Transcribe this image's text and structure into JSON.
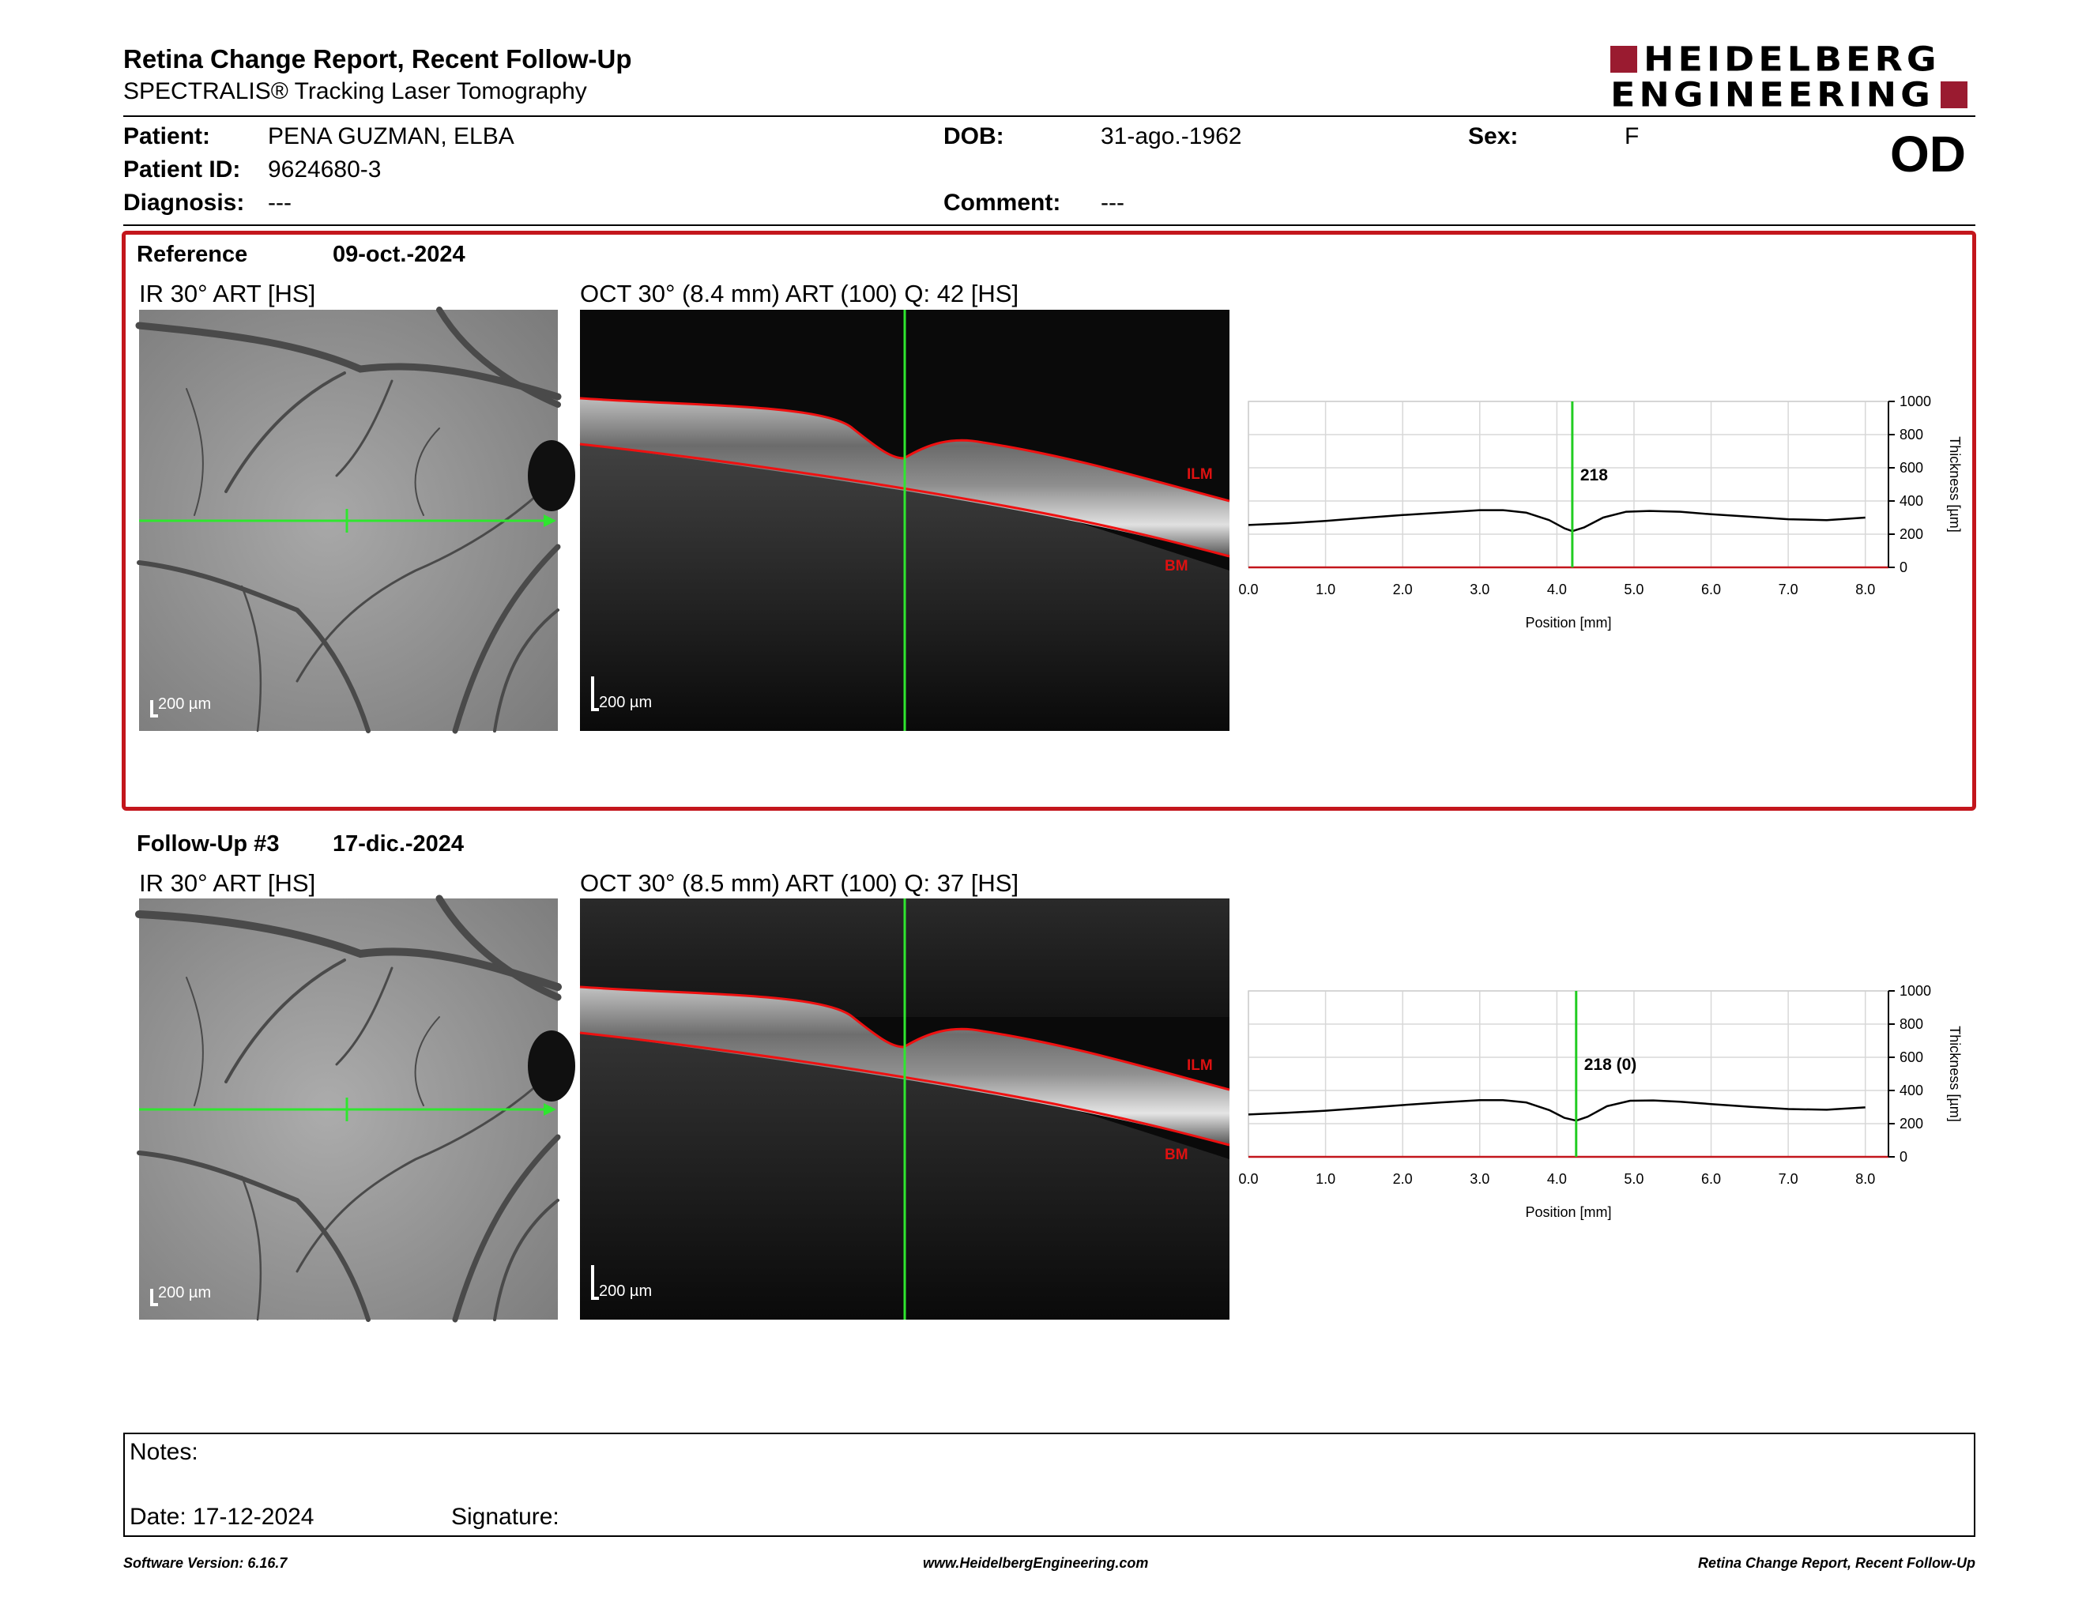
{
  "header": {
    "title": "Retina Change Report, Recent Follow-Up",
    "subtitle": "SPECTRALIS® Tracking Laser Tomography",
    "logo_line1": "HEIDELBERG",
    "logo_line2": "ENGINEERING",
    "brand_color": "#9a1b30"
  },
  "patient": {
    "patient_label": "Patient:",
    "patient_value": "PENA GUZMAN, ELBA",
    "id_label": "Patient ID:",
    "id_value": "9624680-3",
    "diagnosis_label": "Diagnosis:",
    "diagnosis_value": "---",
    "dob_label": "DOB:",
    "dob_value": "31-ago.-1962",
    "comment_label": "Comment:",
    "comment_value": "---",
    "sex_label": "Sex:",
    "sex_value": "F",
    "eye": "OD"
  },
  "reference": {
    "label": "Reference",
    "date": "09-oct.-2024",
    "ir_title": "IR 30° ART [HS]",
    "oct_title": "OCT 30° (8.4 mm) ART (100) Q: 42 [HS]",
    "ir_scale": "200 µm",
    "oct_scale": "200 µm",
    "ilm_label": "ILM",
    "bm_label": "BM",
    "highlight_color": "#c3161c"
  },
  "followup": {
    "label": "Follow-Up #3",
    "date": "17-dic.-2024",
    "ir_title": "IR 30° ART [HS]",
    "oct_title": "OCT 30° (8.5 mm) ART (100) Q: 37 [HS]",
    "ir_scale": "200 µm",
    "oct_scale": "200 µm",
    "ilm_label": "ILM",
    "bm_label": "BM"
  },
  "chart_data": [
    {
      "type": "line",
      "xlabel": "Position [mm]",
      "ylabel": "Thickness [µm]",
      "xlim": [
        0,
        8.3
      ],
      "ylim": [
        0,
        1000
      ],
      "x_ticks": [
        "0.0",
        "1.0",
        "2.0",
        "3.0",
        "4.0",
        "5.0",
        "6.0",
        "7.0",
        "8.0"
      ],
      "y_ticks": [
        "0",
        "200",
        "400",
        "600",
        "800",
        "1000"
      ],
      "cursor_x": 4.2,
      "cursor_label": "218",
      "cursor_color": "#22cc22",
      "grid": true,
      "x": [
        0.0,
        0.5,
        1.0,
        1.5,
        2.0,
        2.5,
        3.0,
        3.3,
        3.6,
        3.9,
        4.1,
        4.2,
        4.35,
        4.6,
        4.9,
        5.2,
        5.6,
        6.0,
        6.5,
        7.0,
        7.5,
        8.0
      ],
      "y": [
        255,
        265,
        280,
        298,
        315,
        330,
        345,
        345,
        330,
        285,
        235,
        218,
        240,
        300,
        335,
        340,
        335,
        320,
        305,
        290,
        285,
        300
      ]
    },
    {
      "type": "line",
      "xlabel": "Position [mm]",
      "ylabel": "Thickness [µm]",
      "xlim": [
        0,
        8.3
      ],
      "ylim": [
        0,
        1000
      ],
      "x_ticks": [
        "0.0",
        "1.0",
        "2.0",
        "3.0",
        "4.0",
        "5.0",
        "6.0",
        "7.0",
        "8.0"
      ],
      "y_ticks": [
        "0",
        "200",
        "400",
        "600",
        "800",
        "1000"
      ],
      "cursor_x": 4.25,
      "cursor_label": "218 (0)",
      "cursor_color": "#22cc22",
      "grid": true,
      "x": [
        0.0,
        0.5,
        1.0,
        1.5,
        2.0,
        2.5,
        3.0,
        3.3,
        3.6,
        3.9,
        4.1,
        4.25,
        4.4,
        4.65,
        4.95,
        5.25,
        5.6,
        6.0,
        6.5,
        7.0,
        7.5,
        8.0
      ],
      "y": [
        255,
        265,
        278,
        295,
        312,
        328,
        342,
        342,
        328,
        282,
        235,
        218,
        242,
        305,
        338,
        340,
        332,
        318,
        302,
        288,
        284,
        298
      ]
    }
  ],
  "notes": {
    "notes_label": "Notes:",
    "date_label": "Date: 17-12-2024",
    "signature_label": "Signature:"
  },
  "footer": {
    "software": "Software Version: 6.16.7",
    "website": "www.HeidelbergEngineering.com",
    "report_name": "Retina Change Report, Recent Follow-Up"
  }
}
